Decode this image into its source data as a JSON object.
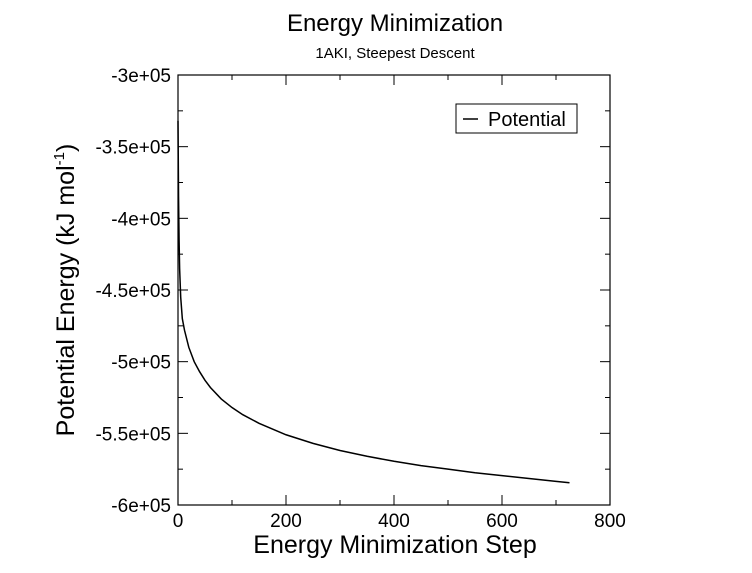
{
  "chart_data": {
    "type": "line",
    "title": "Energy Minimization",
    "subtitle": "1AKI, Steepest Descent",
    "xlabel": "Energy Minimization Step",
    "ylabel_main": "Potential Energy (kJ mol",
    "ylabel_sup": "-1",
    "ylabel_end": ")",
    "xlim": [
      0,
      800
    ],
    "ylim": [
      -600000,
      -300000
    ],
    "xticks": [
      0,
      200,
      400,
      600,
      800
    ],
    "xtick_labels": [
      "0",
      "200",
      "400",
      "600",
      "800"
    ],
    "yticks": [
      -300000,
      -350000,
      -400000,
      -450000,
      -500000,
      -550000,
      -600000
    ],
    "ytick_labels": [
      "-3e+05",
      "-3.5e+05",
      "-4e+05",
      "-4.5e+05",
      "-5e+05",
      "-5.5e+05",
      "-6e+05"
    ],
    "grid": false,
    "legend_position": "top-right",
    "series": [
      {
        "name": "Potential",
        "color": "#000000",
        "x": [
          0,
          1,
          2,
          3,
          5,
          8,
          12,
          20,
          30,
          40,
          50,
          60,
          80,
          100,
          120,
          150,
          200,
          250,
          300,
          350,
          400,
          450,
          500,
          550,
          600,
          650,
          700,
          725
        ],
        "y": [
          -332000,
          -385000,
          -415000,
          -435000,
          -455000,
          -470000,
          -478000,
          -490000,
          -500000,
          -507000,
          -513000,
          -518000,
          -526000,
          -532000,
          -537000,
          -543000,
          -551000,
          -557000,
          -562000,
          -566000,
          -569500,
          -572500,
          -575000,
          -577500,
          -579500,
          -581500,
          -583500,
          -584500
        ]
      }
    ]
  }
}
